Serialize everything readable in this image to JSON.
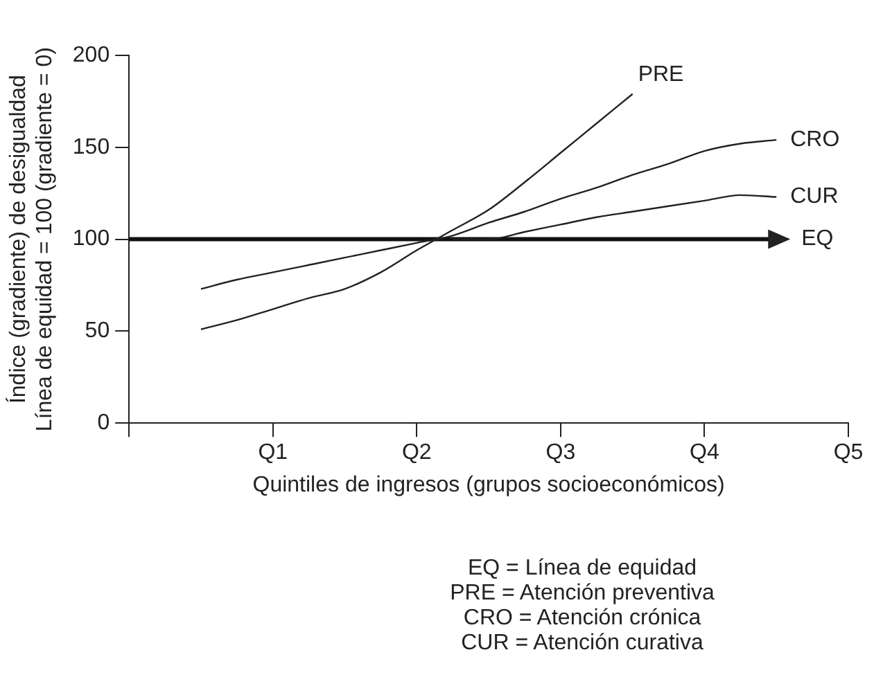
{
  "chart_data": {
    "type": "line",
    "xlabel": "Quintiles de ingresos (grupos socioeconómicos)",
    "ylabel": "Índice (gradiente) de desigualdad\nLínea de equidad = 100 (gradiente = 0)",
    "categories": [
      null,
      null,
      null,
      null,
      "Q1",
      null,
      null,
      null,
      "Q2",
      null,
      null,
      null,
      "Q3",
      null,
      null,
      null,
      "Q4",
      null,
      null,
      null,
      "Q5"
    ],
    "ylim": [
      0,
      200
    ],
    "yticks": [
      0,
      50,
      100,
      150,
      200
    ],
    "grid": false,
    "legend": false,
    "marker": "none",
    "line_style": "solid",
    "series": [
      {
        "name": "PRE",
        "color": "#222222",
        "values": [
          null,
          null,
          51,
          56,
          62,
          68,
          73,
          82,
          94,
          105,
          116,
          131,
          147,
          163,
          179,
          null,
          null,
          null,
          null,
          null,
          null
        ]
      },
      {
        "name": "CRO",
        "color": "#222222",
        "values": [
          null,
          null,
          73,
          78,
          82,
          86,
          90,
          94,
          98,
          102,
          109,
          115,
          122,
          128,
          135,
          141,
          148,
          152,
          154,
          null,
          null
        ]
      },
      {
        "name": "CUR",
        "color": "#222222",
        "values": [
          null,
          null,
          null,
          null,
          null,
          null,
          null,
          null,
          null,
          100,
          100,
          104,
          108,
          112,
          115,
          118,
          121,
          124,
          123,
          null,
          null
        ]
      },
      {
        "name": "EQ",
        "color": "#111111",
        "values": [
          100,
          100,
          100,
          100,
          100,
          100,
          100,
          100,
          100,
          100,
          100,
          100,
          100,
          100,
          100,
          100,
          100,
          100,
          100,
          null,
          null
        ]
      }
    ],
    "annotations": [
      "EQ = Línea de equidad",
      "PRE = Atención preventiva",
      "CRO = Atención crónica",
      "CUR = Atención curativa"
    ]
  }
}
